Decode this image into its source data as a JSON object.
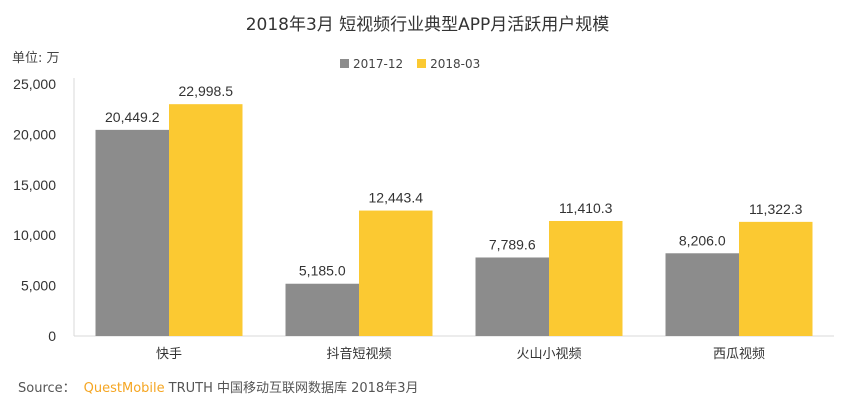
{
  "chart_data": {
    "type": "bar",
    "title": "2018年3月 短视频行业典型APP月活跃用户规模",
    "ylabel": "单位: 万",
    "xlabel": "",
    "categories": [
      "快手",
      "抖音短视频",
      "火山小视频",
      "西瓜视频"
    ],
    "series": [
      {
        "name": "2017-12",
        "color": "#8c8c8c",
        "values": [
          20449.2,
          5185.0,
          7789.6,
          8206.0
        ],
        "labels": [
          "20,449.2",
          "5,185.0",
          "7,789.6",
          "8,206.0"
        ]
      },
      {
        "name": "2018-03",
        "color": "#fbc932",
        "values": [
          22998.5,
          12443.4,
          11410.3,
          11322.3
        ],
        "labels": [
          "22,998.5",
          "12,443.4",
          "11,410.3",
          "11,322.3"
        ]
      }
    ],
    "ylim": [
      0,
      25000
    ],
    "yticks": [
      0,
      5000,
      10000,
      15000,
      20000,
      25000
    ],
    "ytick_labels": [
      "0",
      "5,000",
      "10,000",
      "15,000",
      "20,000",
      "25,000"
    ],
    "grid": false,
    "legend": "top-center"
  },
  "source": {
    "prefix": "Source：",
    "brand": "QuestMobile",
    "text": "TRUTH 中国移动互联网数据库 2018年3月"
  }
}
